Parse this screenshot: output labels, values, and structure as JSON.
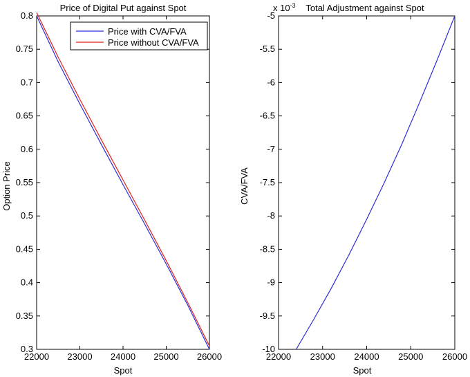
{
  "chart_data": [
    {
      "type": "line",
      "title": "Price of Digital Put against Spot",
      "xlabel": "Spot",
      "ylabel": "Option Price",
      "xlim": [
        22000,
        26000
      ],
      "ylim": [
        0.3,
        0.8
      ],
      "x_ticks": [
        22000,
        23000,
        24000,
        25000,
        26000
      ],
      "x_tick_labels": [
        "22000",
        "23000",
        "24000",
        "25000",
        "26000"
      ],
      "y_ticks": [
        0.3,
        0.35,
        0.4,
        0.45,
        0.5,
        0.55,
        0.6,
        0.65,
        0.7,
        0.75,
        0.8
      ],
      "y_tick_labels": [
        "0.3",
        "0.35",
        "0.4",
        "0.45",
        "0.5",
        "0.55",
        "0.6",
        "0.65",
        "0.7",
        "0.75",
        "0.8"
      ],
      "grid": false,
      "legend_position": "top-right",
      "x": [
        22000,
        22500,
        23000,
        23500,
        24000,
        24500,
        25000,
        25500,
        26000
      ],
      "series": [
        {
          "name": "Price with CVA/FVA",
          "color": "#2b2bd6",
          "values": [
            0.8,
            0.731,
            0.668,
            0.607,
            0.547,
            0.488,
            0.428,
            0.366,
            0.3
          ]
        },
        {
          "name": "Price without CVA/FVA",
          "color": "#e0201b",
          "values": [
            0.805,
            0.738,
            0.675,
            0.614,
            0.554,
            0.494,
            0.433,
            0.37,
            0.305
          ]
        }
      ]
    },
    {
      "type": "line",
      "title": "Total Adjustment against Spot",
      "exponent_label": "x 10",
      "exponent_power": "-3",
      "xlabel": "Spot",
      "ylabel": "CVA/FVA",
      "xlim": [
        22000,
        26000
      ],
      "ylim": [
        -10,
        -5
      ],
      "y_scale_factor": "1e-3",
      "x_ticks": [
        22000,
        23000,
        24000,
        25000,
        26000
      ],
      "x_tick_labels": [
        "22000",
        "23000",
        "24000",
        "25000",
        "26000"
      ],
      "y_ticks": [
        -10,
        -9.5,
        -9,
        -8.5,
        -8,
        -7.5,
        -7,
        -6.5,
        -6,
        -5.5,
        -5
      ],
      "y_tick_labels": [
        "-10",
        "-9.5",
        "-9",
        "-8.5",
        "-8",
        "-7.5",
        "-7",
        "-6.5",
        "-6",
        "-5.5",
        "-5"
      ],
      "grid": false,
      "x": [
        22400,
        22800,
        23200,
        23600,
        24000,
        24400,
        24800,
        25200,
        25600,
        26000
      ],
      "series": [
        {
          "color": "#2b2bd6",
          "values": [
            -10.0,
            -9.55,
            -9.08,
            -8.58,
            -8.05,
            -7.5,
            -6.92,
            -6.3,
            -5.66,
            -5.0
          ]
        }
      ]
    }
  ]
}
